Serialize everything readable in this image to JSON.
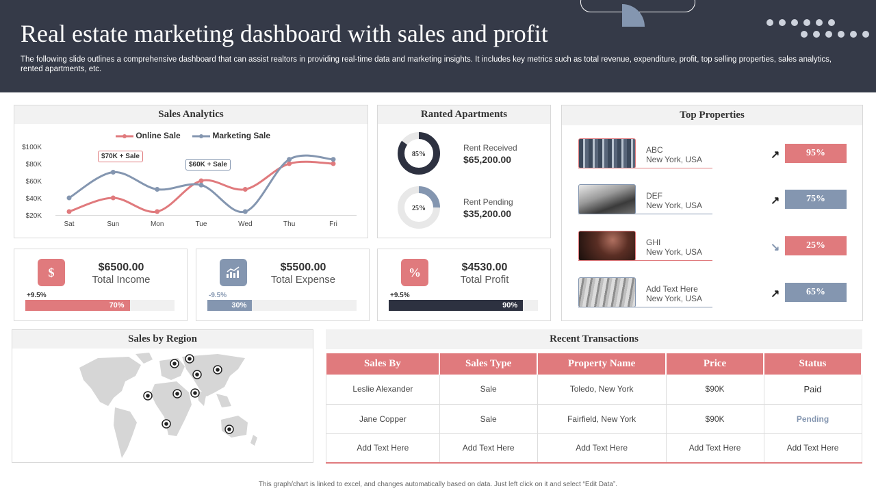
{
  "header": {
    "title": "Real estate marketing dashboard with sales and profit",
    "description": "The following slide outlines a comprehensive dashboard that can assist realtors in providing real-time data and marketing insights. It includes key metrics such as total revenue, expenditure, profit, top selling properties, sales analytics, rented apartments, etc."
  },
  "colors": {
    "header_bg": "#353a48",
    "red": "#e07a7d",
    "blue": "#8496b0",
    "dark": "#2d3140"
  },
  "sales_analytics": {
    "title": "Sales Analytics",
    "legend": {
      "online": "Online Sale",
      "marketing": "Marketing Sale"
    },
    "callout_online": "$70K + Sale",
    "callout_marketing": "$60K + Sale"
  },
  "chart_data": {
    "type": "line",
    "categories": [
      "Sat",
      "Sun",
      "Mon",
      "Tue",
      "Wed",
      "Thu",
      "Fri"
    ],
    "y_ticks": [
      "$100K",
      "$80K",
      "$60K",
      "$40K",
      "$20K"
    ],
    "ylim": [
      20,
      100
    ],
    "series": [
      {
        "name": "Online Sale",
        "color": "#e07a7d",
        "values": [
          24,
          40,
          24,
          60,
          50,
          80,
          80
        ]
      },
      {
        "name": "Marketing Sale",
        "color": "#8496b0",
        "values": [
          40,
          70,
          50,
          55,
          24,
          85,
          85
        ]
      }
    ]
  },
  "apartments": {
    "title": "Ranted Apartments",
    "received": {
      "label": "Rent Received",
      "value": "$65,200.00",
      "percent": 85,
      "percent_label": "85%"
    },
    "pending": {
      "label": "Rent Pending",
      "value": "$35,200.00",
      "percent": 25,
      "percent_label": "25%"
    }
  },
  "kpis": [
    {
      "icon": "$",
      "icon_name": "dollar-icon",
      "amount": "$6500.00",
      "label": "Total Income",
      "change": "+9.5%",
      "bar_label": "70%",
      "fraction": 0.7,
      "color": "#e07a7d"
    },
    {
      "icon": "",
      "icon_name": "chart-growth-icon",
      "amount": "$5500.00",
      "label": "Total Expense",
      "change": "-9.5%",
      "bar_label": "30%",
      "fraction": 0.3,
      "color": "#8496b0"
    },
    {
      "icon": "%",
      "icon_name": "percent-icon",
      "amount": "$4530.00",
      "label": "Total Profit",
      "change": "+9.5%",
      "bar_label": "90%",
      "fraction": 0.9,
      "color": "#2d3140"
    }
  ],
  "top_properties": {
    "title": "Top Properties",
    "items": [
      {
        "name": "ABC",
        "location": "New York, USA",
        "percent": "95%",
        "trend": "up",
        "color": "#e07a7d"
      },
      {
        "name": "DEF",
        "location": "New York, USA",
        "percent": "75%",
        "trend": "up",
        "color": "#8496b0"
      },
      {
        "name": "GHI",
        "location": "New York, USA",
        "percent": "25%",
        "trend": "down",
        "color": "#e07a7d"
      },
      {
        "name": "Add Text Here",
        "location": "New York, USA",
        "percent": "65%",
        "trend": "up",
        "color": "#8496b0"
      }
    ]
  },
  "region": {
    "title": "Sales by Region"
  },
  "transactions": {
    "title": "Recent Transactions",
    "columns": [
      "Sales By",
      "Sales Type",
      "Property Name",
      "Price",
      "Status"
    ],
    "rows": [
      [
        "Leslie Alexander",
        "Sale",
        "Toledo, New York",
        "$90K",
        "Paid"
      ],
      [
        "Jane Copper",
        "Sale",
        "Fairfield, New York",
        "$90K",
        "Pending"
      ],
      [
        "Add Text Here",
        "Add Text Here",
        "Add Text Here",
        "Add Text Here",
        "Add Text Here"
      ]
    ]
  },
  "footer": "This graph/chart is linked to excel, and changes automatically based on data. Just left click on it and select “Edit Data”."
}
